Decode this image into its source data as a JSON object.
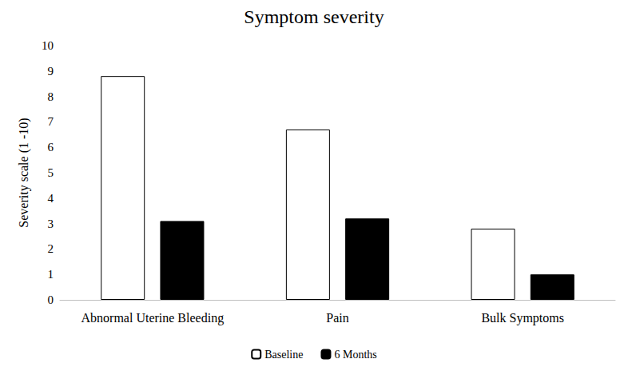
{
  "chart_data": {
    "type": "bar",
    "title": "Symptom severity",
    "y_label": "Severity scale (1 -10)",
    "categories": [
      "Abnormal Uterine Bleeding",
      "Pain",
      "Bulk Symptoms"
    ],
    "series": [
      {
        "name": "Baseline",
        "color": "#ffffff",
        "values": [
          8.8,
          6.7,
          2.8
        ]
      },
      {
        "name": "6 Months",
        "color": "#000000",
        "values": [
          3.1,
          3.2,
          1.0
        ]
      }
    ],
    "ylim": [
      0,
      10
    ],
    "yticks": [
      0,
      1,
      2,
      3,
      4,
      5,
      6,
      7,
      8,
      9,
      10
    ],
    "grid": false,
    "legend": "bottom"
  }
}
